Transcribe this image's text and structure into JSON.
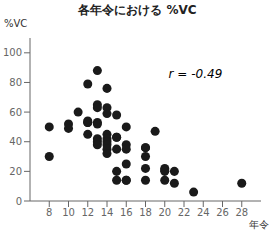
{
  "chart_data": {
    "type": "scatter",
    "title": "各年令における %VC",
    "xlabel": "年令",
    "ylabel": "%VC",
    "annotation": "r = -0.49",
    "xlim": [
      6,
      30
    ],
    "ylim": [
      0,
      110
    ],
    "xticks": [
      8,
      10,
      12,
      14,
      16,
      18,
      20,
      22,
      24,
      26,
      28
    ],
    "yticks": [
      0,
      20,
      40,
      60,
      80,
      100
    ],
    "x": [
      8,
      8,
      10,
      10,
      11,
      12,
      12,
      12,
      12,
      12,
      13,
      13,
      13,
      13,
      13,
      13,
      13,
      13,
      14,
      14,
      14,
      14,
      14,
      14,
      14,
      14,
      14,
      15,
      15,
      15,
      15,
      15,
      15,
      16,
      16,
      16,
      16,
      16,
      16,
      18,
      18,
      18,
      18,
      18,
      19,
      20,
      20,
      20,
      20,
      21,
      21,
      23,
      28
    ],
    "values": [
      50,
      30,
      52,
      49,
      60,
      79,
      53,
      53,
      54,
      45,
      88,
      65,
      63,
      53,
      52,
      42,
      40,
      38,
      76,
      63,
      59,
      45,
      42,
      40,
      38,
      35,
      32,
      58,
      43,
      43,
      35,
      20,
      14,
      50,
      38,
      35,
      25,
      14,
      14,
      36,
      36,
      30,
      22,
      14,
      47,
      22,
      21,
      20,
      14,
      20,
      12,
      6,
      12
    ],
    "color": "#1a1a1a",
    "grid": false
  }
}
